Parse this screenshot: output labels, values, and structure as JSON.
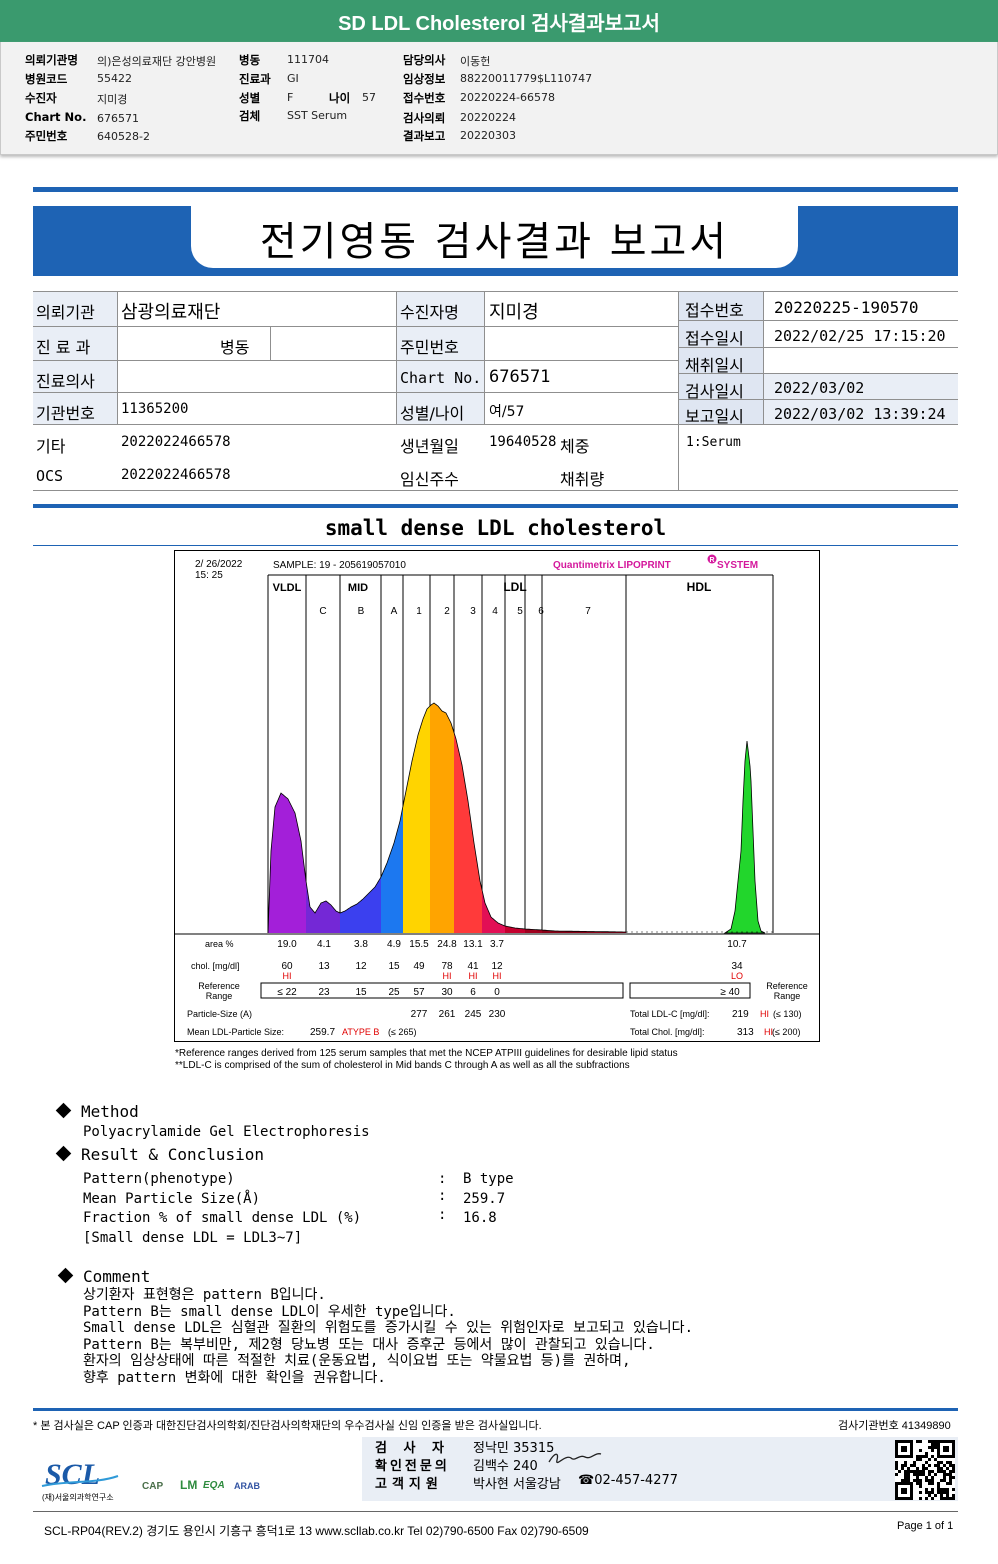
{
  "top": {
    "title": "SD LDL Cholesterol 검사결과보고서",
    "fields": {
      "inst_label": "의뢰기관명",
      "inst": "의)은성의료재단 강안병원",
      "code_label": "병원코드",
      "code": "55422",
      "patient_label": "수진자",
      "patient": "지미경",
      "chart_label": "Chart No.",
      "chart": "676571",
      "rrn_label": "주민번호",
      "rrn": "640528-2",
      "ward_label": "병동",
      "ward": "111704",
      "dept_label": "진료과",
      "dept": "GI",
      "sex_label": "성별",
      "sex": "F",
      "age_label": "나이",
      "age": "57",
      "spec_label": "검체",
      "spec": "SST Serum",
      "doc_label": "담당의사",
      "doc": "이동헌",
      "clin_label": "임상정보",
      "clin": "88220011779$L110747",
      "recv_label": "접수번호",
      "recv": "20220224-66578",
      "req_label": "검사의뢰",
      "req": "20220224",
      "rep_label": "결과보고",
      "rep": "20220303"
    }
  },
  "report": {
    "title": "전기영동 검사결과 보고서",
    "t": {
      "inst_label": "의뢰기관",
      "inst": "삼광의료재단",
      "dept_label": "진 료 과",
      "dept": "병동",
      "doctor_label": "진료의사",
      "org_label": "기관번호",
      "org": "11365200",
      "etc_label": "기타",
      "etc": "2022022466578",
      "ocs_label": "OCS",
      "ocs": "2022022466578",
      "name_label": "수진자명",
      "name": "지미경",
      "rrn_label": "주민번호",
      "chart_label": "Chart No.",
      "chart": "676571",
      "sexage_label": "성별/나이",
      "sexage": "여/57",
      "birth_label": "생년월일",
      "birth": "19640528",
      "weight_label": "체중",
      "preg_label": "임신주수",
      "volume_label": "채취량",
      "recvno_label": "접수번호",
      "recvno": "20220225-190570",
      "recvdt_label": "접수일시",
      "recvdt": "2022/02/25 17:15:20",
      "coll_label": "채취일시",
      "test_label": "검사일시",
      "test": "2022/03/02",
      "report_label": "보고일시",
      "report": "2022/03/02 13:39:24",
      "specimen": "1:Serum"
    }
  },
  "section_title": "small dense LDL cholesterol",
  "chart_data": {
    "type": "area",
    "date": "2/ 26/2022",
    "time": "15: 25",
    "sample": "SAMPLE:   19 - 205619057010",
    "brand": "Quantimetrix  LIPOPRINT",
    "brand_mark": "R",
    "brand_suffix": " SYSTEM",
    "groups": [
      "VLDL",
      "MID",
      "LDL",
      "HDL"
    ],
    "bands": [
      "C",
      "B",
      "A",
      "1",
      "2",
      "3",
      "4",
      "5",
      "6",
      "7"
    ],
    "band_colors": [
      "#9b1fd6",
      "#6a2bd6",
      "#3b3ff0",
      "#1e6cf0",
      "#f5c400",
      "#ffa800",
      "#ff4b4b",
      "#e0105a",
      "#c00030",
      "#a00020",
      "#900018",
      "#22d32b"
    ],
    "rows": {
      "area_label": "area %",
      "area": [
        "19.0",
        "4.1",
        "3.8",
        "4.9",
        "15.5",
        "24.8",
        "13.1",
        "3.7"
      ],
      "hdl_area": "10.7",
      "chol_label": "chol. [mg/dl]",
      "chol": [
        "60",
        "13",
        "12",
        "15",
        "49",
        "78",
        "41",
        "12"
      ],
      "hdl_chol": "34",
      "flags": [
        "HI",
        "",
        "",
        "",
        "",
        "HI",
        "HI",
        "HI"
      ],
      "hdl_flag": "LO",
      "ref_label_1": "Reference",
      "ref_label_2": "Range",
      "ref": [
        "≤ 22",
        "23",
        "15",
        "25",
        "57",
        "30",
        "6",
        "0"
      ],
      "hdl_ref": "≥  40",
      "particle_label": "Particle-Size (A)",
      "particle": [
        "277",
        "261",
        "245",
        "230"
      ],
      "mean_label": "Mean LDL-Particle Size:",
      "mean": "259.7",
      "mean_type": "ATYPE B",
      "mean_ref": "(≤ 265)",
      "total_ldl_label": "Total LDL-C  [mg/dl]:",
      "total_ldl": "219",
      "total_ldl_flag": "HI",
      "total_ldl_ref": "(≤ 130)",
      "total_chol_label": "Total Chol.  [mg/dl]:",
      "total_chol": "313",
      "total_chol_flag": "HI",
      "total_chol_ref": "(≤ 200)"
    }
  },
  "notes": [
    "*Reference ranges derived from 125 serum samples that met the NCEP ATPIII guidelines for desirable lipid status",
    "**LDL-C is comprised of the sum of cholesterol in Mid bands C through A as well as all the subfractions"
  ],
  "method": {
    "head": "Method",
    "text": "Polyacrylamide Gel Electrophoresis"
  },
  "result": {
    "head": "Result & Conclusion",
    "rows": [
      {
        "k": "Pattern(phenotype)",
        "v": "B type"
      },
      {
        "k": "Mean Particle Size(Å)",
        "v": "259.7"
      },
      {
        "k": "Fraction % of small dense LDL (%)",
        "v": "16.8"
      }
    ],
    "note": "[Small dense LDL = LDL3~7]"
  },
  "comment": {
    "head": "Comment",
    "lines": [
      "상기환자 표현형은 pattern B입니다.",
      "Pattern B는 small dense LDL이 우세한 type입니다.",
      "Small dense LDL은 심혈관 질환의 위험도를 증가시킬 수 있는 위험인자로 보고되고 있습니다.",
      "Pattern B는 복부비만, 제2형 당뇨병 또는 대사 증후군 등에서 많이 관찰되고 있습니다.",
      "환자의 임상상태에 따른 적절한 치료(운동요법, 식이요법 또는 약물요법 등)를 권하며,",
      "향후 pattern 변화에 대한 확인을 권유합니다."
    ]
  },
  "footer": {
    "statement": "* 본 검사실은 CAP 인증과 대한진단검사의학회/진단검사의학재단의 우수검사실 신임 인증을 받은 검사실입니다.",
    "lab_no": "검사기관번호  41349890",
    "tester_label": "검 사 자",
    "tester": "정낙민 35315",
    "specialist_label": "확인전문의",
    "specialist": "김백수 240",
    "support_label": "고객지원",
    "support": "박사현 서울강남",
    "phone": "☎02-457-4277",
    "logo": "SCL",
    "logo_sub": "(재)서울의과학연구소",
    "accred": [
      "CAP",
      "LM",
      "EQA",
      "ARAB"
    ],
    "address": "SCL-RP04(REV.2)  경기도 용인시 기흥구 흥덕1로 13  www.scllab.co.kr  Tel 02)790-6500  Fax 02)790-6509",
    "page": "Page 1 of 1"
  }
}
